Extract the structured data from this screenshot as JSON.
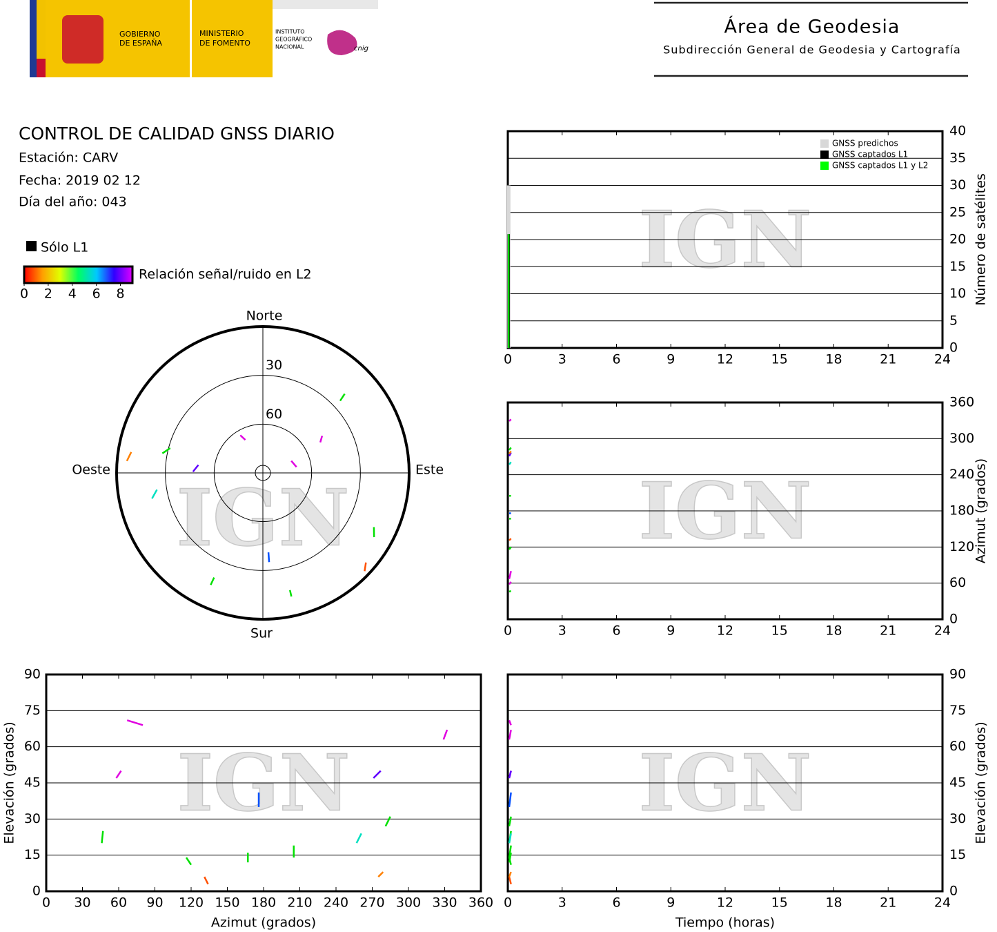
{
  "header": {
    "gobierno": [
      "GOBIERNO",
      "DE ESPAÑA"
    ],
    "ministerio": [
      "MINISTERIO",
      "DE FOMENTO"
    ],
    "instituto": [
      "INSTITUTO",
      "GEOGRÁFICO",
      "NACIONAL"
    ],
    "cnig": "cnig",
    "area": "Área de Geodesia",
    "subdireccion": "Subdirección General de Geodesia y Cartografía"
  },
  "info": {
    "title": "CONTROL DE CALIDAD GNSS DIARIO",
    "station": "Estación: CARV",
    "date": "Fecha: 2019 02 12",
    "doy": "Día del año: 043",
    "l1_only": "Sólo L1",
    "colorbar_label": "Relación señal/ruido en L2",
    "colorbar_ticks": [
      0,
      2,
      4,
      6,
      8
    ],
    "colorbar_lim": [
      0,
      9
    ]
  },
  "watermark": "IGN",
  "chart_data": [
    {
      "type": "bar",
      "x": [
        0.05
      ],
      "series": [
        {
          "name": "GNSS predichos",
          "color": "#d8d8d8",
          "values": [
            30
          ]
        },
        {
          "name": "GNSS captados L1",
          "color": "#000000",
          "values": [
            21
          ]
        },
        {
          "name": "GNSS captados L1 y L2",
          "color": "#00ff00",
          "values": [
            21
          ]
        }
      ],
      "xlim": [
        0,
        24
      ],
      "xticks": [
        0,
        3,
        6,
        9,
        12,
        15,
        18,
        21,
        24
      ],
      "ylim": [
        0,
        40
      ],
      "yticks": [
        0,
        5,
        10,
        15,
        20,
        25,
        30,
        35,
        40
      ],
      "ylabel": "Número de satélites",
      "legend": "upper right",
      "grid": true
    },
    {
      "type": "line",
      "ylabel": "Azimut (grados)",
      "xlim": [
        0,
        24
      ],
      "xticks": [
        0,
        3,
        6,
        9,
        12,
        15,
        18,
        21,
        24
      ],
      "ylim": [
        0,
        360
      ],
      "yticks": [
        0,
        60,
        120,
        180,
        240,
        300,
        360
      ],
      "grid": true
    },
    {
      "type": "polar",
      "labels": {
        "north": "Norte",
        "south": "Sur",
        "west": "Oeste",
        "east": "Este"
      },
      "rings": [
        30,
        60
      ],
      "tracks": [
        {
          "color": "#00e000",
          "azimuth": [
            46,
            47
          ],
          "elevation": [
            20,
            25
          ],
          "time": [
            0,
            0.1
          ]
        },
        {
          "color": "#e000e0",
          "azimuth": [
            58,
            62
          ],
          "elevation": [
            47,
            50
          ],
          "time": [
            0,
            0.1
          ]
        },
        {
          "color": "#e000e0",
          "azimuth": [
            67,
            80
          ],
          "elevation": [
            71,
            69
          ],
          "time": [
            0,
            0.1
          ]
        },
        {
          "color": "#00e000",
          "azimuth": [
            116,
            120
          ],
          "elevation": [
            14,
            11
          ],
          "time": [
            0,
            0.1
          ]
        },
        {
          "color": "#ff5000",
          "azimuth": [
            131,
            134
          ],
          "elevation": [
            6,
            3
          ],
          "time": [
            0,
            0.1
          ]
        },
        {
          "color": "#00e000",
          "azimuth": [
            167,
            167
          ],
          "elevation": [
            12,
            16
          ],
          "time": [
            0,
            0.1
          ]
        },
        {
          "color": "#0050ff",
          "azimuth": [
            176,
            176
          ],
          "elevation": [
            35,
            41
          ],
          "time": [
            0,
            0.1
          ]
        },
        {
          "color": "#00e000",
          "azimuth": [
            205,
            205
          ],
          "elevation": [
            14,
            19
          ],
          "time": [
            0,
            0.1
          ]
        },
        {
          "color": "#00e0c0",
          "azimuth": [
            257,
            261
          ],
          "elevation": [
            20,
            24
          ],
          "time": [
            0,
            0.1
          ]
        },
        {
          "color": "#6000ff",
          "azimuth": [
            271,
            277
          ],
          "elevation": [
            47,
            50
          ],
          "time": [
            0,
            0.1
          ]
        },
        {
          "color": "#ff8000",
          "azimuth": [
            275,
            279
          ],
          "elevation": [
            6,
            8
          ],
          "time": [
            0,
            0.1
          ]
        },
        {
          "color": "#00e000",
          "azimuth": [
            281,
            285
          ],
          "elevation": [
            27,
            31
          ],
          "time": [
            0,
            0.1
          ]
        },
        {
          "color": "#e000e0",
          "azimuth": [
            329,
            332
          ],
          "elevation": [
            63,
            67
          ],
          "time": [
            0,
            0.1
          ]
        }
      ]
    },
    {
      "type": "scatter",
      "xlabel": "Azimut (grados)",
      "ylabel": "Elevación (grados)",
      "xlim": [
        0,
        360
      ],
      "xticks": [
        0,
        30,
        60,
        90,
        120,
        150,
        180,
        210,
        240,
        270,
        300,
        330,
        360
      ],
      "ylim": [
        0,
        90
      ],
      "yticks": [
        0,
        15,
        30,
        45,
        60,
        75,
        90
      ],
      "grid": true
    },
    {
      "type": "line",
      "xlabel": "Tiempo (horas)",
      "ylabel": "Elevación (grados)",
      "xlim": [
        0,
        24
      ],
      "xticks": [
        0,
        3,
        6,
        9,
        12,
        15,
        18,
        21,
        24
      ],
      "ylim": [
        0,
        90
      ],
      "yticks": [
        0,
        15,
        30,
        45,
        60,
        75,
        90
      ],
      "grid": true
    }
  ]
}
